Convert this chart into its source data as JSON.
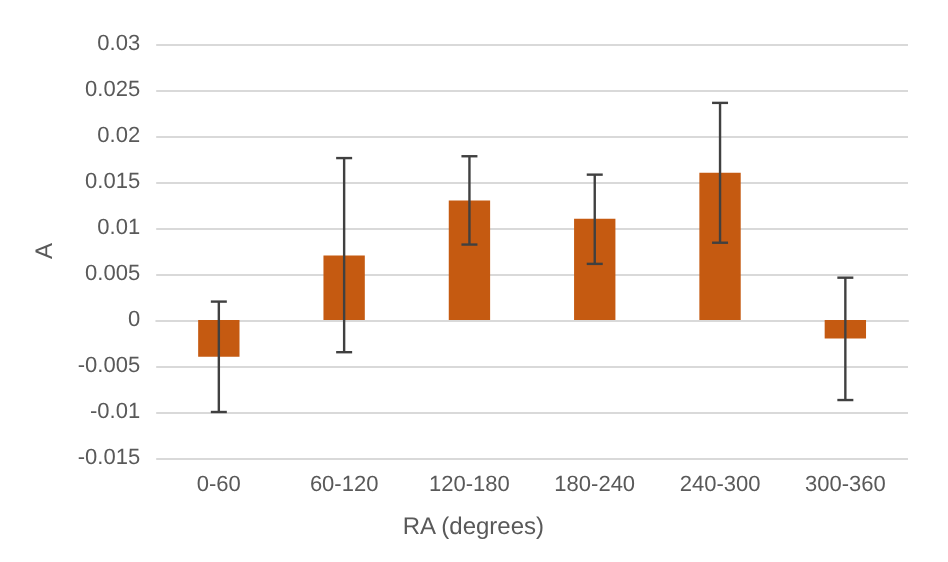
{
  "chart_data": {
    "type": "bar",
    "xlabel": "RA (degrees)",
    "ylabel": "A",
    "categories": [
      "0-60",
      "60-120",
      "120-180",
      "180-240",
      "240-300",
      "300-360"
    ],
    "values": [
      -0.004,
      0.007,
      0.013,
      0.011,
      0.016,
      -0.002
    ],
    "errors": [
      [
        -0.01,
        0.002
      ],
      [
        -0.0035,
        0.0176
      ],
      [
        0.0082,
        0.0178
      ],
      [
        0.0061,
        0.0158
      ],
      [
        0.0084,
        0.0236
      ],
      [
        -0.0087,
        0.0046
      ]
    ],
    "color": "#c55a11",
    "ylim": [
      -0.015,
      0.03
    ],
    "yticks": [
      -0.015,
      -0.01,
      -0.005,
      0,
      0.005,
      0.01,
      0.015,
      0.02,
      0.025,
      0.03
    ],
    "grid": "y"
  }
}
